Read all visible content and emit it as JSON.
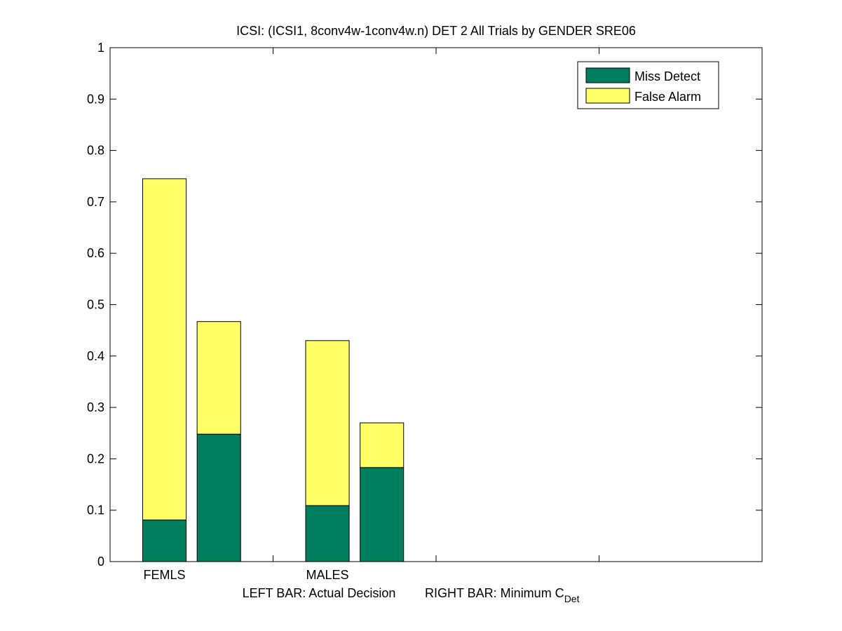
{
  "chart_data": {
    "type": "bar",
    "stacked": true,
    "title": "ICSI: (ICSI1, 8conv4w-1conv4w.n) DET 2 All Trials by GENDER SRE06",
    "xlabel": {
      "left_text": "LEFT BAR: Actual Decision",
      "right_text": "RIGHT BAR: Minimum C",
      "right_subscript": "Det"
    },
    "ylabel": "",
    "ylim": [
      0,
      1
    ],
    "yticks": [
      "0",
      "0.1",
      "0.2",
      "0.3",
      "0.4",
      "0.5",
      "0.6",
      "0.7",
      "0.8",
      "0.9",
      "1"
    ],
    "categories": [
      "FEMLS",
      "MALES"
    ],
    "bar_roles": [
      "Actual Decision",
      "Minimum C_Det"
    ],
    "series": [
      {
        "name": "Miss Detect",
        "color": "#007f5f",
        "values": [
          [
            0.081,
            0.248
          ],
          [
            0.109,
            0.183
          ]
        ]
      },
      {
        "name": "False Alarm",
        "color": "#ffff66",
        "values": [
          [
            0.664,
            0.219
          ],
          [
            0.321,
            0.087
          ]
        ]
      }
    ],
    "totals": [
      [
        0.745,
        0.467
      ],
      [
        0.43,
        0.27
      ]
    ],
    "legend": {
      "placement": "top-right",
      "entries": [
        "Miss Detect",
        "False Alarm"
      ]
    },
    "grid": false
  }
}
